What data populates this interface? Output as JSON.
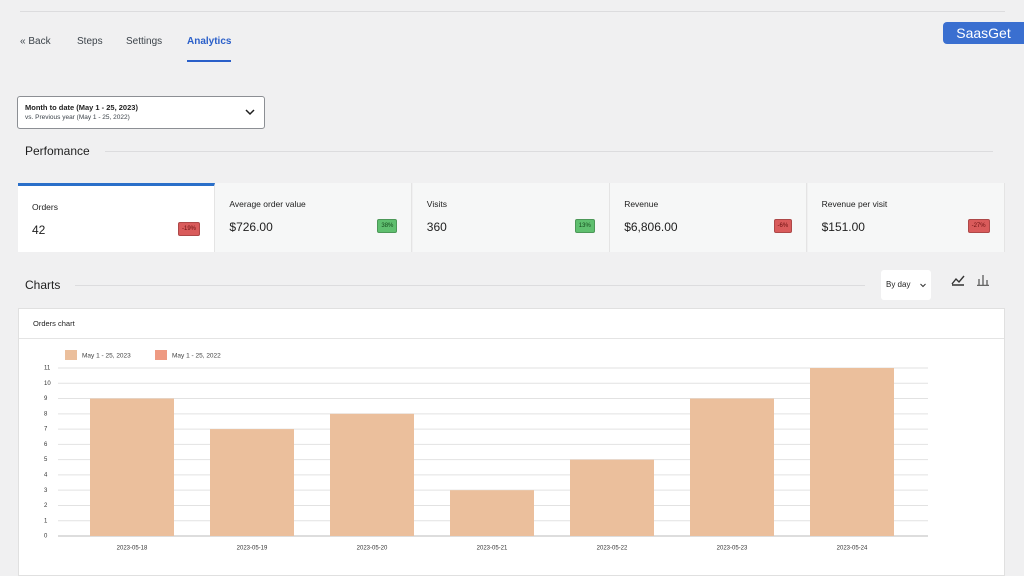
{
  "watermark": "SaasGet",
  "nav": {
    "back": "« Back",
    "tabs": [
      "Steps",
      "Settings",
      "Analytics"
    ],
    "active": "Analytics"
  },
  "date_range": {
    "primary": "Month to date (May 1 - 25, 2023)",
    "compare": "vs. Previous year (May 1 - 25, 2022)"
  },
  "performance": {
    "title": "Perfomance",
    "cards": [
      {
        "label": "Orders",
        "value": "42",
        "change": "-19%",
        "trend": "down"
      },
      {
        "label": "Average order value",
        "value": "$726.00",
        "change": "38%",
        "trend": "up"
      },
      {
        "label": "Visits",
        "value": "360",
        "change": "13%",
        "trend": "up"
      },
      {
        "label": "Revenue",
        "value": "$6,806.00",
        "change": "-6%",
        "trend": "down"
      },
      {
        "label": "Revenue per visit",
        "value": "$151.00",
        "change": "-27%",
        "trend": "down"
      }
    ]
  },
  "charts": {
    "title": "Charts",
    "interval": "By day"
  },
  "chart_data": {
    "type": "bar",
    "title": "Orders chart",
    "categories": [
      "2023-05-18",
      "2023-05-19",
      "2023-05-20",
      "2023-05-21",
      "2023-05-22",
      "2023-05-23",
      "2023-05-24"
    ],
    "series": [
      {
        "name": "May 1 - 25, 2023",
        "color": "#ebbf9c",
        "values": [
          9,
          7,
          8,
          3,
          5,
          9,
          11
        ]
      },
      {
        "name": "May 1 - 25, 2022",
        "color": "#ee9a82",
        "values": [
          null,
          null,
          null,
          null,
          null,
          null,
          null
        ]
      }
    ],
    "ylim": [
      0,
      11
    ],
    "yticks": [
      0,
      1,
      2,
      3,
      4,
      5,
      6,
      7,
      8,
      9,
      10,
      11
    ],
    "grid": true,
    "legend": "top-left"
  }
}
